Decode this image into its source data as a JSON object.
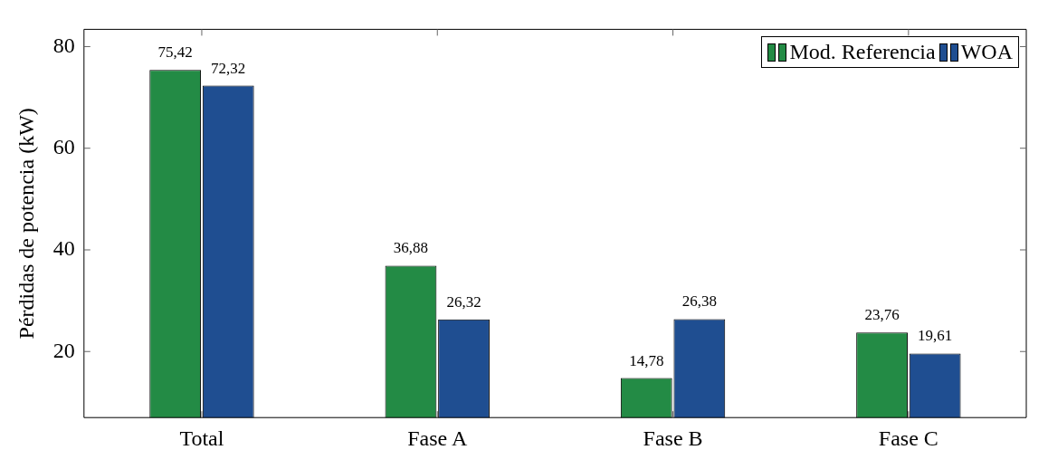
{
  "chart_data": {
    "type": "bar",
    "ylabel": "Pérdidas de potencia (kW)",
    "categories": [
      "Total",
      "Fase A",
      "Fase B",
      "Fase C"
    ],
    "series": [
      {
        "name": "Mod. Referencia",
        "color": "#238b45",
        "values": [
          75.42,
          36.88,
          14.78,
          23.76
        ],
        "value_labels": [
          "75,42",
          "36,88",
          "14,78",
          "23,76"
        ]
      },
      {
        "name": "WOA",
        "color": "#1f4e91",
        "values": [
          72.32,
          26.32,
          26.38,
          19.61
        ],
        "value_labels": [
          "72,32",
          "26,32",
          "26,38",
          "19,61"
        ]
      }
    ],
    "ylim": [
      7,
      83.4
    ],
    "yticks": [
      20,
      40,
      60,
      80
    ],
    "grid": false,
    "legend": "top right"
  }
}
